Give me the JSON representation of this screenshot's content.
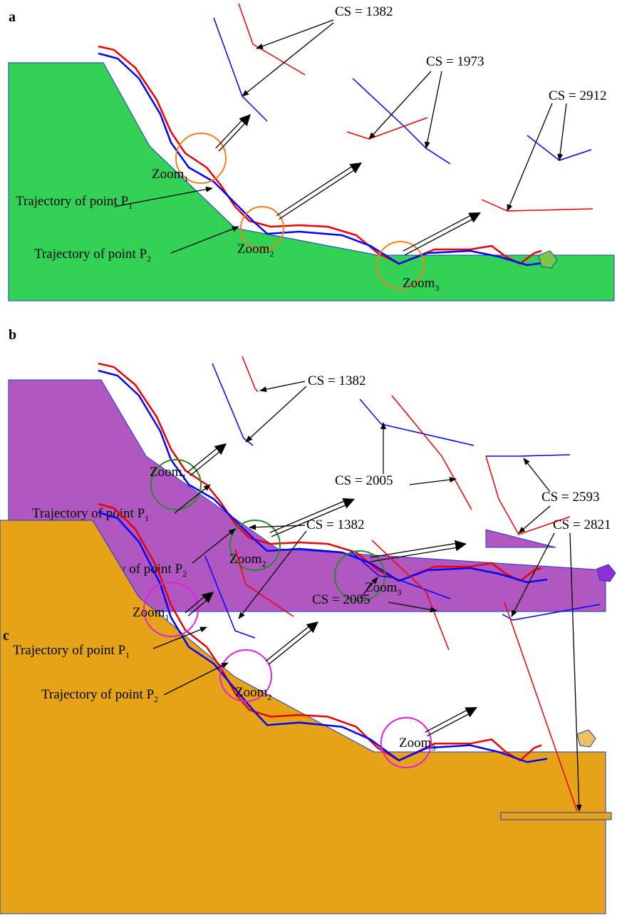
{
  "panels": [
    {
      "label": "a",
      "cs_labels": [
        "CS = 1382",
        "CS = 1973",
        "CS = 2912"
      ],
      "zooms": [
        {
          "text": "Zoom",
          "sub": "1"
        },
        {
          "text": "Zoom",
          "sub": "2"
        },
        {
          "text": "Zoom",
          "sub": "3"
        }
      ],
      "trajectories": [
        {
          "text": "Trajectory of point P",
          "sub": "1"
        },
        {
          "text": "Trajectory of point P",
          "sub": "2"
        }
      ]
    },
    {
      "label": "b",
      "cs_labels": [
        "CS = 1382",
        "CS = 2005",
        "CS = 2593"
      ],
      "zooms": [
        {
          "text": "Zoom",
          "sub": "1"
        },
        {
          "text": "Zoom",
          "sub": "2"
        },
        {
          "text": "Zoom",
          "sub": "3"
        }
      ],
      "trajectories": [
        {
          "text": "Trajectory of point P",
          "sub": "1"
        },
        {
          "text": "Trajectory of point P",
          "sub": "2"
        }
      ]
    },
    {
      "label": "c",
      "cs_labels": [
        "CS = 1382",
        "CS = 2005",
        "CS = 2821"
      ],
      "zooms": [
        {
          "text": "Zoom",
          "sub": "1"
        },
        {
          "text": "Zoom",
          "sub": "2"
        },
        {
          "text": "Zoom",
          "sub": "3"
        }
      ],
      "trajectories": [
        {
          "text": "Trajectory of point P",
          "sub": "1"
        },
        {
          "text": "Trajectory of point P",
          "sub": "2"
        }
      ]
    }
  ]
}
